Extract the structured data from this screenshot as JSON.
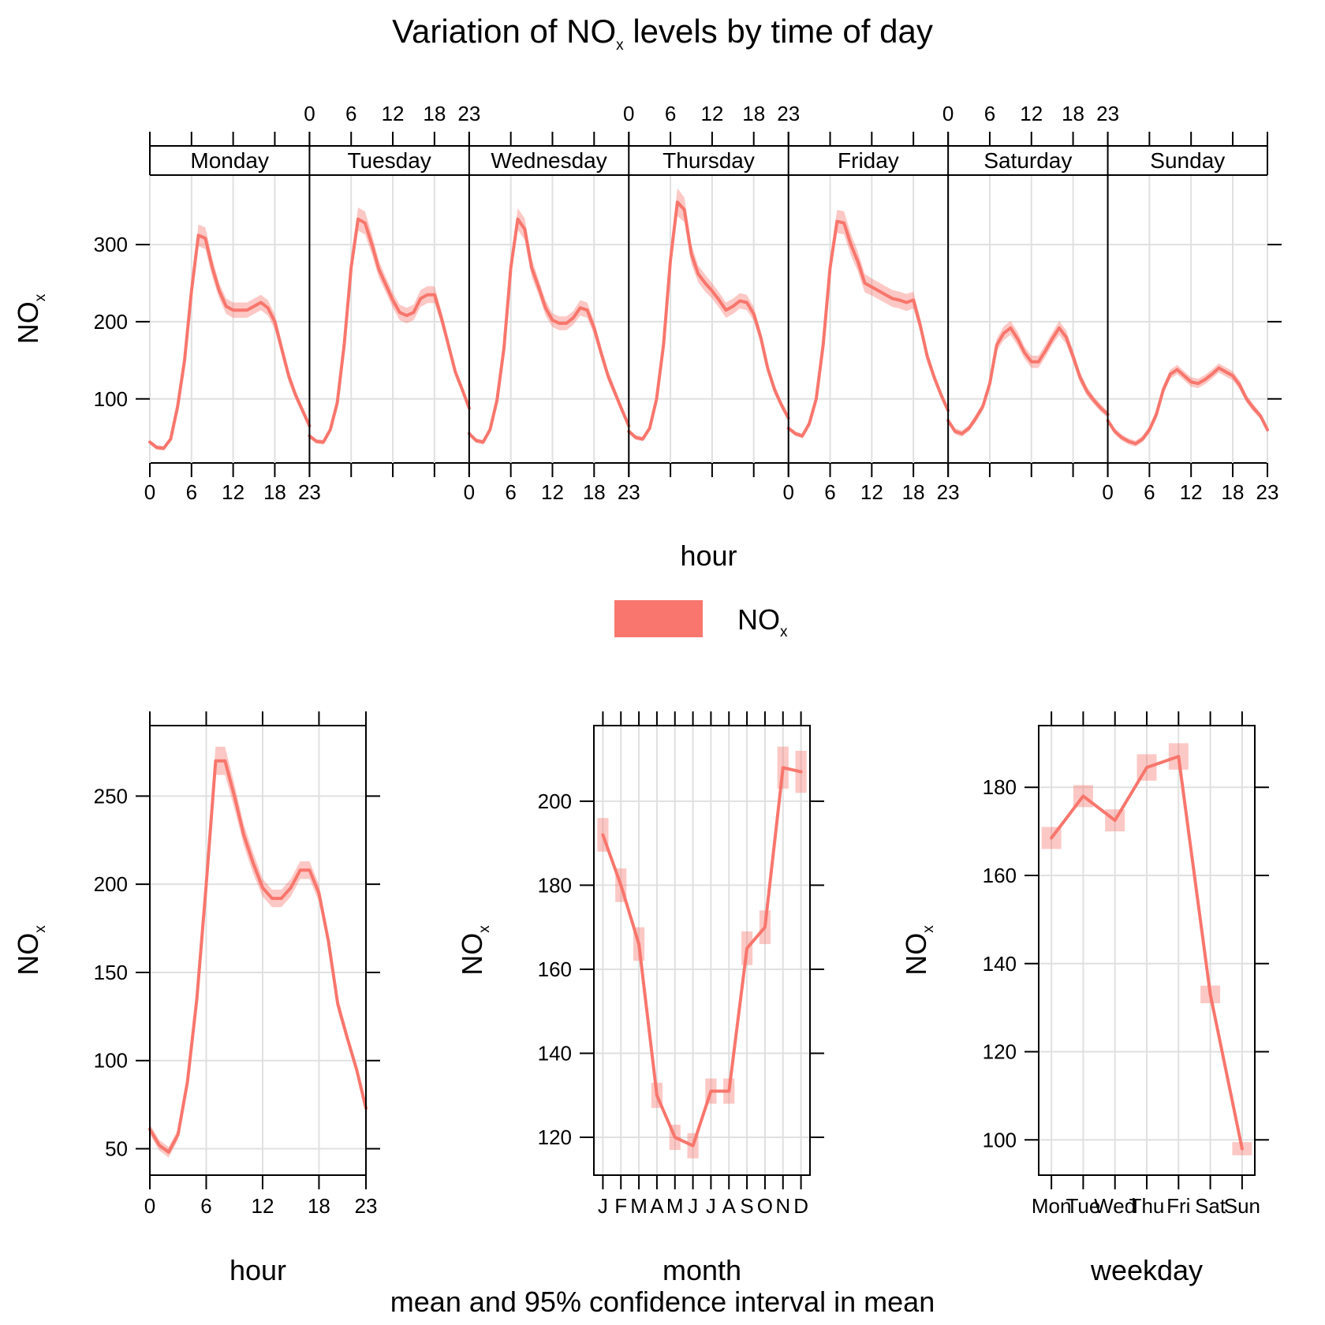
{
  "figure": {
    "title_main": "Variation of NO",
    "title_sub": "x",
    "title_rest": " levels by time of day",
    "footer": "mean and 95% confidence interval in mean",
    "legend_label": "NO",
    "legend_sub": "x",
    "series_color": "#f8766d"
  },
  "chart_data": [
    {
      "type": "line",
      "panel": "hour-by-weekday",
      "xlabel": "hour",
      "ylabel": "NO",
      "ylabel_sub": "x",
      "xlim": [
        0,
        23
      ],
      "ylim": [
        17,
        390
      ],
      "x_ticks": [
        0,
        6,
        12,
        18,
        23
      ],
      "y_ticks": [
        100,
        200,
        300
      ],
      "strip_labels": [
        "Monday",
        "Tuesday",
        "Wednesday",
        "Thursday",
        "Friday",
        "Saturday",
        "Sunday"
      ],
      "x": [
        0,
        1,
        2,
        3,
        4,
        5,
        6,
        7,
        8,
        9,
        10,
        11,
        12,
        13,
        14,
        15,
        16,
        17,
        18,
        19,
        20,
        21,
        22,
        23
      ],
      "series": [
        {
          "name": "Monday",
          "values": [
            44,
            37,
            36,
            48,
            90,
            150,
            240,
            312,
            308,
            270,
            240,
            220,
            215,
            215,
            215,
            220,
            225,
            218,
            200,
            165,
            130,
            105,
            85,
            65
          ],
          "ci": [
            3,
            3,
            3,
            3,
            5,
            8,
            12,
            14,
            14,
            12,
            10,
            10,
            10,
            10,
            10,
            10,
            10,
            10,
            10,
            9,
            8,
            6,
            5,
            4
          ]
        },
        {
          "name": "Tuesday",
          "values": [
            52,
            45,
            44,
            60,
            95,
            170,
            270,
            333,
            328,
            300,
            268,
            248,
            228,
            212,
            208,
            212,
            230,
            235,
            235,
            205,
            170,
            135,
            112,
            88
          ],
          "ci": [
            3,
            3,
            3,
            3,
            5,
            8,
            12,
            15,
            15,
            13,
            11,
            10,
            10,
            10,
            10,
            10,
            11,
            11,
            11,
            9,
            8,
            6,
            5,
            4
          ]
        },
        {
          "name": "Wednesday",
          "values": [
            55,
            46,
            44,
            60,
            98,
            165,
            270,
            333,
            320,
            270,
            245,
            218,
            202,
            198,
            198,
            205,
            218,
            215,
            192,
            160,
            130,
            108,
            86,
            65
          ],
          "ci": [
            3,
            3,
            3,
            3,
            5,
            8,
            12,
            14,
            14,
            12,
            10,
            10,
            9,
            9,
            9,
            9,
            10,
            10,
            9,
            8,
            7,
            6,
            5,
            4
          ]
        },
        {
          "name": "Thursday",
          "values": [
            58,
            50,
            48,
            62,
            100,
            170,
            280,
            355,
            345,
            288,
            262,
            250,
            240,
            228,
            215,
            220,
            227,
            225,
            210,
            180,
            140,
            112,
            92,
            75
          ],
          "ci": [
            3,
            3,
            3,
            3,
            5,
            8,
            12,
            18,
            16,
            13,
            11,
            11,
            10,
            10,
            10,
            10,
            10,
            10,
            9,
            8,
            7,
            6,
            5,
            4
          ]
        },
        {
          "name": "Friday",
          "values": [
            62,
            55,
            52,
            68,
            100,
            170,
            270,
            330,
            328,
            300,
            278,
            250,
            245,
            240,
            235,
            230,
            228,
            225,
            228,
            195,
            155,
            128,
            105,
            85
          ],
          "ci": [
            3,
            3,
            3,
            3,
            5,
            8,
            12,
            15,
            15,
            14,
            13,
            12,
            11,
            11,
            11,
            11,
            11,
            11,
            11,
            9,
            8,
            6,
            5,
            4
          ]
        },
        {
          "name": "Saturday",
          "values": [
            72,
            58,
            55,
            62,
            75,
            90,
            120,
            170,
            185,
            192,
            178,
            160,
            148,
            148,
            162,
            178,
            192,
            180,
            155,
            128,
            110,
            98,
            88,
            80
          ],
          "ci": [
            4,
            4,
            4,
            4,
            5,
            5,
            6,
            8,
            9,
            9,
            9,
            8,
            8,
            8,
            8,
            8,
            9,
            9,
            8,
            7,
            6,
            5,
            5,
            4
          ]
        },
        {
          "name": "Sunday",
          "values": [
            72,
            58,
            50,
            45,
            42,
            48,
            60,
            80,
            112,
            132,
            138,
            130,
            122,
            120,
            125,
            132,
            140,
            135,
            130,
            118,
            100,
            88,
            78,
            60
          ],
          "ci": [
            4,
            4,
            4,
            4,
            4,
            4,
            5,
            6,
            6,
            6,
            6,
            6,
            6,
            6,
            6,
            6,
            6,
            6,
            6,
            6,
            5,
            5,
            4,
            4
          ]
        }
      ]
    },
    {
      "type": "line",
      "panel": "hour",
      "xlabel": "hour",
      "ylabel": "NO",
      "ylabel_sub": "x",
      "xlim": [
        0,
        23
      ],
      "ylim": [
        35,
        290
      ],
      "x_ticks": [
        0,
        6,
        12,
        18,
        23
      ],
      "y_ticks": [
        50,
        100,
        150,
        200,
        250
      ],
      "x": [
        0,
        1,
        2,
        3,
        4,
        5,
        6,
        7,
        8,
        9,
        10,
        11,
        12,
        13,
        14,
        15,
        16,
        17,
        18,
        19,
        20,
        21,
        22,
        23
      ],
      "values": [
        61,
        52,
        48,
        58,
        88,
        135,
        200,
        270,
        270,
        250,
        228,
        212,
        198,
        192,
        192,
        198,
        208,
        208,
        195,
        168,
        132,
        113,
        95,
        73
      ],
      "ci": [
        3,
        3,
        3,
        3,
        4,
        5,
        6,
        8,
        8,
        7,
        6,
        6,
        5,
        5,
        5,
        5,
        5,
        5,
        5,
        4,
        4,
        3,
        3,
        3
      ]
    },
    {
      "type": "line",
      "panel": "month",
      "xlabel": "month",
      "ylabel": "NO",
      "ylabel_sub": "x",
      "xlim": [
        0.5,
        12.5
      ],
      "ylim": [
        111,
        218
      ],
      "y_ticks": [
        120,
        140,
        160,
        180,
        200
      ],
      "categories": [
        "J",
        "F",
        "M",
        "A",
        "M",
        "J",
        "J",
        "A",
        "S",
        "O",
        "N",
        "D"
      ],
      "values": [
        192,
        180,
        166,
        130,
        120,
        118,
        131,
        131,
        165,
        170,
        208,
        207
      ],
      "ci": [
        4,
        4,
        4,
        3,
        3,
        3,
        3,
        3,
        4,
        4,
        5,
        5
      ]
    },
    {
      "type": "line",
      "panel": "weekday",
      "xlabel": "weekday",
      "ylabel": "NO",
      "ylabel_sub": "x",
      "xlim": [
        0.6,
        7.4
      ],
      "ylim": [
        92,
        194
      ],
      "y_ticks": [
        100,
        120,
        140,
        160,
        180
      ],
      "categories": [
        "Mon",
        "Tue",
        "Wed",
        "Thu",
        "Fri",
        "Sat",
        "Sun"
      ],
      "values": [
        168.5,
        178,
        172.5,
        184.5,
        187,
        133,
        98
      ],
      "ci": [
        2.5,
        2.5,
        2.5,
        3,
        3,
        2,
        1.5
      ]
    }
  ]
}
